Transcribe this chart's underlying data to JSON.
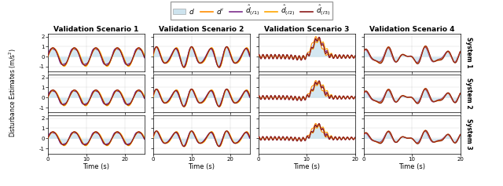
{
  "scenarios": [
    "Validation Scenario 1",
    "Validation Scenario 2",
    "Validation Scenario 3",
    "Validation Scenario 4"
  ],
  "systems": [
    "System 1",
    "System 2",
    "System 3"
  ],
  "t_ends": [
    25,
    25,
    20,
    20
  ],
  "colors": {
    "d_fill": "#b8d8e8",
    "d_prime": "#ff8c00",
    "d_I1": "#7b2d8b",
    "d_I2": "#ffa500",
    "d_I3": "#8b1a1a"
  },
  "xlabel": "Time (s)",
  "ylabel": "Disturbance Estimates (m/s$^2$)",
  "figsize": [
    6.4,
    2.37
  ],
  "dpi": 100
}
